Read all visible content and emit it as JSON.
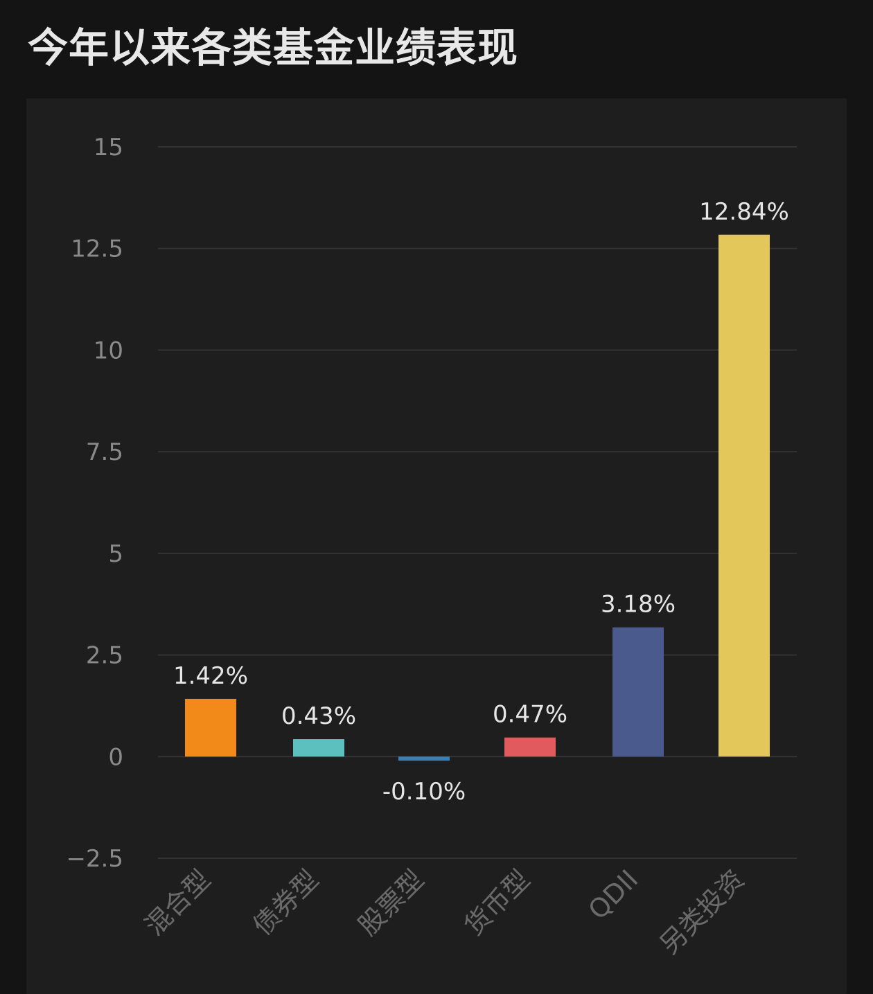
{
  "header": {
    "title": "今年以来各类基金业绩表现"
  },
  "chart_data": {
    "type": "bar",
    "title": "今年以来各类基金业绩表现",
    "categories": [
      "混合型",
      "债券型",
      "股票型",
      "货币型",
      "QDII",
      "另类投资"
    ],
    "values": [
      1.42,
      0.43,
      -0.1,
      0.47,
      3.18,
      12.84
    ],
    "data_labels": [
      "1.42%",
      "0.43%",
      "-0.10%",
      "0.47%",
      "3.18%",
      "12.84%"
    ],
    "colors": [
      "#f28a1a",
      "#5bc0be",
      "#3a7fb5",
      "#e05a5e",
      "#4a5a8c",
      "#e3c75a"
    ],
    "y_ticks": [
      15,
      12.5,
      10,
      7.5,
      5,
      2.5,
      0,
      -2.5
    ],
    "y_tick_labels": [
      "15",
      "12.5",
      "10",
      "7.5",
      "5",
      "2.5",
      "0",
      "−2.5"
    ],
    "ylim": [
      -2.5,
      15
    ],
    "grid": true,
    "legend": "none"
  }
}
